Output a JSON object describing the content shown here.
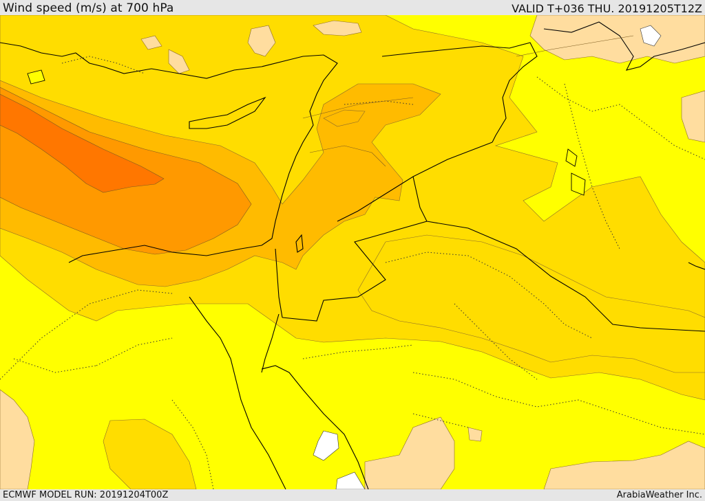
{
  "header": {
    "title": "Wind speed (m/s) at 700 hPa",
    "valid": "VALID T+036 THU. 20191205T12Z"
  },
  "footer": {
    "model_run": "ECMWF MODEL RUN: 20191204T00Z",
    "credit": "ArabiaWeather Inc."
  },
  "palette": {
    "level_1": "#ffff00",
    "level_2": "#ffdd00",
    "level_3": "#ffbb00",
    "level_4": "#ff9900",
    "level_5": "#ff7700",
    "calm": "#ffdd9f",
    "water": "#ffffff"
  }
}
